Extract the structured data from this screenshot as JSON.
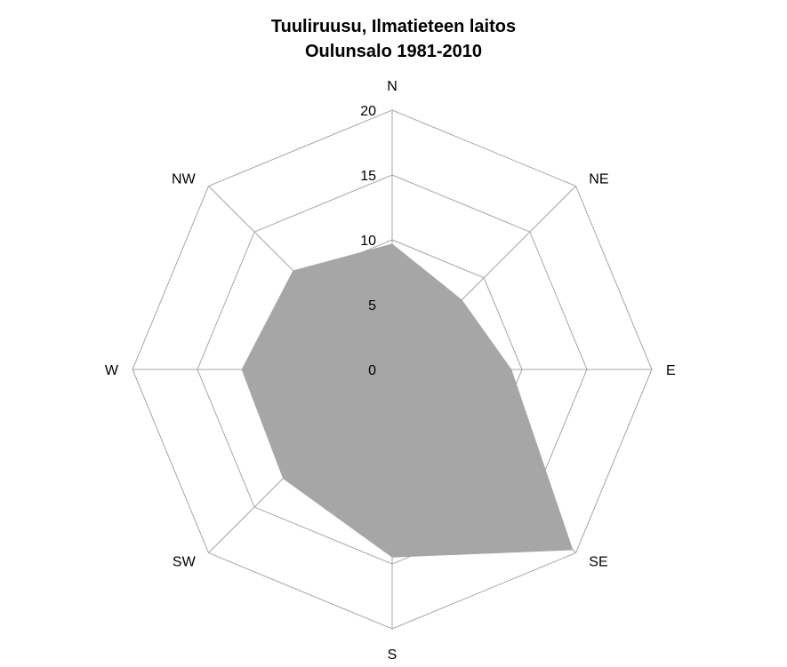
{
  "chart_data": {
    "type": "radar",
    "title": "Tuuliruusu, Ilmatieteen laitos",
    "subtitle": "Oulunsalo 1981-2010",
    "categories": [
      "N",
      "NE",
      "E",
      "SE",
      "S",
      "SW",
      "W",
      "NW"
    ],
    "series": [
      {
        "values": [
          9.7,
          7.6,
          9.2,
          19.7,
          14.5,
          11.9,
          11.6,
          10.8
        ]
      }
    ],
    "rmin": 0,
    "rmax": 20,
    "ticks": [
      0,
      5,
      10,
      15,
      20
    ],
    "grid": true,
    "colors": {
      "area": "#a6a6a6",
      "grid": "#a6a6a6"
    }
  }
}
